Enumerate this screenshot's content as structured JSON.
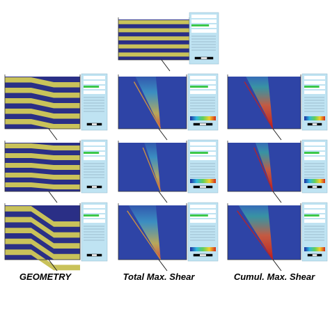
{
  "labels": {
    "geometry": "GEOMETRY",
    "total": "Total Max. Shear",
    "cumul": "Cumul. Max. Shear"
  }
}
